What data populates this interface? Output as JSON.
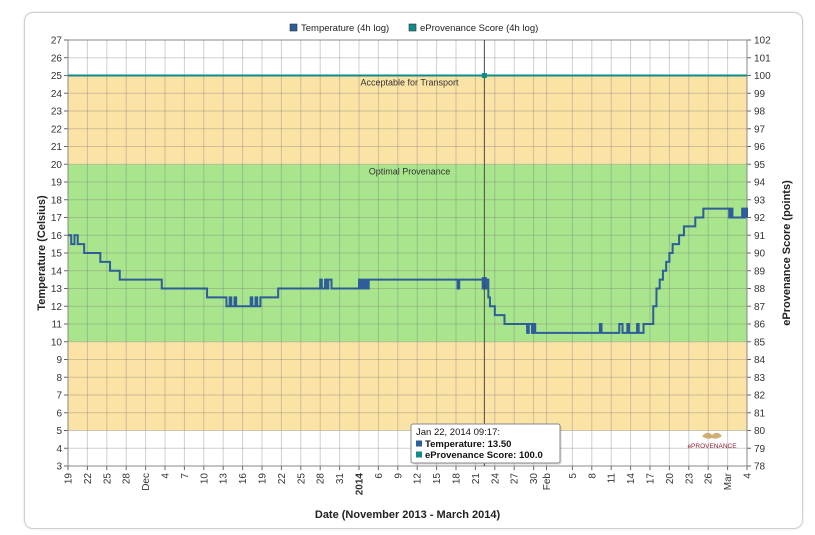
{
  "chart_data": {
    "type": "line",
    "xlabel": "Date (November 2013 - March 2014)",
    "ylabel": "Temperature (Celsius)",
    "y2label": "eProvenance Score (points)",
    "ylim": [
      3,
      27
    ],
    "y2lim": [
      78,
      102
    ],
    "x_range": [
      "2013-11-19",
      "2014-03-04"
    ],
    "grid": true,
    "legend": {
      "position": "top-center",
      "items": [
        {
          "name": "Temperature (4h log)",
          "color": "#2e5d99"
        },
        {
          "name": "eProvenance Score (4h log)",
          "color": "#138a8a"
        }
      ]
    },
    "bands": [
      {
        "label": "",
        "from": 3,
        "to": 5,
        "color": "#ffffff"
      },
      {
        "label": "",
        "from": 5,
        "to": 10,
        "color": "#fbe3a6"
      },
      {
        "label": "Optimal Provenance",
        "from": 10,
        "to": 20,
        "color": "#a8e58c"
      },
      {
        "label": "Acceptable for Transport",
        "from": 20,
        "to": 25,
        "color": "#fbe3a6"
      },
      {
        "label": "",
        "from": 25,
        "to": 27,
        "color": "#ffffff"
      }
    ],
    "x_ticks": [
      {
        "label": "19",
        "date": "2013-11-19"
      },
      {
        "label": "22",
        "date": "2013-11-22"
      },
      {
        "label": "25",
        "date": "2013-11-25"
      },
      {
        "label": "28",
        "date": "2013-11-28"
      },
      {
        "label": "Dec",
        "date": "2013-12-01"
      },
      {
        "label": "4",
        "date": "2013-12-04"
      },
      {
        "label": "7",
        "date": "2013-12-07"
      },
      {
        "label": "10",
        "date": "2013-12-10"
      },
      {
        "label": "13",
        "date": "2013-12-13"
      },
      {
        "label": "16",
        "date": "2013-12-16"
      },
      {
        "label": "19",
        "date": "2013-12-19"
      },
      {
        "label": "22",
        "date": "2013-12-22"
      },
      {
        "label": "25",
        "date": "2013-12-25"
      },
      {
        "label": "28",
        "date": "2013-12-28"
      },
      {
        "label": "31",
        "date": "2013-12-31"
      },
      {
        "label": "2014",
        "date": "2014-01-03",
        "bold": true
      },
      {
        "label": "6",
        "date": "2014-01-06"
      },
      {
        "label": "9",
        "date": "2014-01-09"
      },
      {
        "label": "12",
        "date": "2014-01-12"
      },
      {
        "label": "15",
        "date": "2014-01-15"
      },
      {
        "label": "18",
        "date": "2014-01-18"
      },
      {
        "label": "21",
        "date": "2014-01-21"
      },
      {
        "label": "24",
        "date": "2014-01-24"
      },
      {
        "label": "27",
        "date": "2014-01-27"
      },
      {
        "label": "30",
        "date": "2014-01-30"
      },
      {
        "label": "Feb",
        "date": "2014-02-01"
      },
      {
        "label": "5",
        "date": "2014-02-05"
      },
      {
        "label": "8",
        "date": "2014-02-08"
      },
      {
        "label": "11",
        "date": "2014-02-11"
      },
      {
        "label": "14",
        "date": "2014-02-14"
      },
      {
        "label": "17",
        "date": "2014-02-17"
      },
      {
        "label": "20",
        "date": "2014-02-20"
      },
      {
        "label": "23",
        "date": "2014-02-23"
      },
      {
        "label": "26",
        "date": "2014-02-26"
      },
      {
        "label": "Mar",
        "date": "2014-03-01"
      },
      {
        "label": "4",
        "date": "2014-03-04"
      }
    ],
    "series": [
      {
        "name": "Temperature (4h log)",
        "axis": "left",
        "step": true,
        "color": "#2e5d99",
        "points": [
          [
            "2013-11-19",
            16
          ],
          [
            "2013-11-19 12:00",
            15.5
          ],
          [
            "2013-11-20",
            16
          ],
          [
            "2013-11-20 12:00",
            15.5
          ],
          [
            "2013-11-21",
            15.5
          ],
          [
            "2013-11-21 12:00",
            15
          ],
          [
            "2013-11-24",
            14.5
          ],
          [
            "2013-11-25",
            14.5
          ],
          [
            "2013-11-25 12:00",
            14
          ],
          [
            "2013-11-26 12:00",
            14
          ],
          [
            "2013-11-27",
            13.5
          ],
          [
            "2013-12-03",
            13.5
          ],
          [
            "2013-12-03 12:00",
            13
          ],
          [
            "2013-12-10",
            13
          ],
          [
            "2013-12-10 12:00",
            12.5
          ],
          [
            "2013-12-13",
            12.5
          ],
          [
            "2013-12-13 12:00",
            12
          ],
          [
            "2013-12-14",
            12.5
          ],
          [
            "2013-12-14 06:00",
            12
          ],
          [
            "2013-12-14 18:00",
            12.5
          ],
          [
            "2013-12-15",
            12
          ],
          [
            "2013-12-17 06:00",
            12.5
          ],
          [
            "2013-12-17 12:00",
            12
          ],
          [
            "2013-12-18",
            12.5
          ],
          [
            "2013-12-18 06:00",
            12
          ],
          [
            "2013-12-18 18:00",
            12.5
          ],
          [
            "2013-12-21",
            12.5
          ],
          [
            "2013-12-21 12:00",
            13
          ],
          [
            "2013-12-27 18:00",
            13
          ],
          [
            "2013-12-28",
            13.5
          ],
          [
            "2013-12-28 06:00",
            13
          ],
          [
            "2013-12-28 18:00",
            13.5
          ],
          [
            "2013-12-29",
            13
          ],
          [
            "2013-12-29 06:00",
            13.5
          ],
          [
            "2013-12-29 18:00",
            13
          ],
          [
            "2014-01-02 18:00",
            13
          ],
          [
            "2014-01-03",
            13.5
          ],
          [
            "2014-01-03 06:00",
            13
          ],
          [
            "2014-01-03 12:00",
            13.5
          ],
          [
            "2014-01-03 18:00",
            13
          ],
          [
            "2014-01-04",
            13.5
          ],
          [
            "2014-01-04 06:00",
            13
          ],
          [
            "2014-01-04 12:00",
            13.5
          ],
          [
            "2014-01-18",
            13.5
          ],
          [
            "2014-01-18 06:00",
            13
          ],
          [
            "2014-01-18 12:00",
            13.5
          ],
          [
            "2014-01-22",
            13.5
          ],
          [
            "2014-01-22 03:00",
            13
          ],
          [
            "2014-01-22 06:00",
            13.5
          ],
          [
            "2014-01-22 12:00",
            13
          ],
          [
            "2014-01-22 18:00",
            13.5
          ],
          [
            "2014-01-23",
            12.5
          ],
          [
            "2014-01-23 06:00",
            12
          ],
          [
            "2014-01-24",
            11.5
          ],
          [
            "2014-01-25",
            11.5
          ],
          [
            "2014-01-25 12:00",
            11
          ],
          [
            "2014-01-28 12:00",
            11
          ],
          [
            "2014-01-29",
            10.5
          ],
          [
            "2014-01-29 06:00",
            11
          ],
          [
            "2014-01-29 18:00",
            10.5
          ],
          [
            "2014-01-30",
            11
          ],
          [
            "2014-01-30 06:00",
            10.5
          ],
          [
            "2014-02-09",
            10.5
          ],
          [
            "2014-02-09 06:00",
            11
          ],
          [
            "2014-02-09 12:00",
            10.5
          ],
          [
            "2014-02-12",
            10.5
          ],
          [
            "2014-02-12 06:00",
            11
          ],
          [
            "2014-02-12 18:00",
            10.5
          ],
          [
            "2014-02-13 06:00",
            10.5
          ],
          [
            "2014-02-13 12:00",
            11
          ],
          [
            "2014-02-13 18:00",
            10.5
          ],
          [
            "2014-02-14 18:00",
            10.5
          ],
          [
            "2014-02-15",
            11
          ],
          [
            "2014-02-15 06:00",
            10.5
          ],
          [
            "2014-02-16",
            11
          ],
          [
            "2014-02-17",
            11
          ],
          [
            "2014-02-17 12:00",
            12
          ],
          [
            "2014-02-18",
            13
          ],
          [
            "2014-02-18 12:00",
            13.5
          ],
          [
            "2014-02-19",
            14
          ],
          [
            "2014-02-19 12:00",
            14.5
          ],
          [
            "2014-02-20",
            15
          ],
          [
            "2014-02-20 12:00",
            15.5
          ],
          [
            "2014-02-21 12:00",
            16
          ],
          [
            "2014-02-22 06:00",
            16.5
          ],
          [
            "2014-02-24",
            17
          ],
          [
            "2014-02-25 06:00",
            17.5
          ],
          [
            "2014-03-01",
            17.5
          ],
          [
            "2014-03-01 06:00",
            17
          ],
          [
            "2014-03-01 12:00",
            17.5
          ],
          [
            "2014-03-01 18:00",
            17
          ],
          [
            "2014-03-03",
            17
          ],
          [
            "2014-03-03 06:00",
            17.5
          ],
          [
            "2014-03-03 12:00",
            17
          ],
          [
            "2014-03-03 18:00",
            17.5
          ],
          [
            "2014-03-04",
            17
          ]
        ]
      },
      {
        "name": "eProvenance Score (4h log)",
        "axis": "right",
        "color": "#138a8a",
        "points": [
          [
            "2013-11-19",
            100
          ],
          [
            "2014-03-04",
            100
          ]
        ]
      }
    ],
    "crosshair": {
      "date": "2014-01-22 09:17"
    },
    "tooltip": {
      "title": "Jan 22, 2014 09:17:",
      "rows": [
        {
          "label": "Temperature:",
          "value": "13.50",
          "color": "#2e5d99"
        },
        {
          "label": "eProvenance Score:",
          "value": "100.0",
          "color": "#138a8a"
        }
      ]
    },
    "logo": {
      "text": "PROVENANCE",
      "prefix": "e"
    }
  }
}
